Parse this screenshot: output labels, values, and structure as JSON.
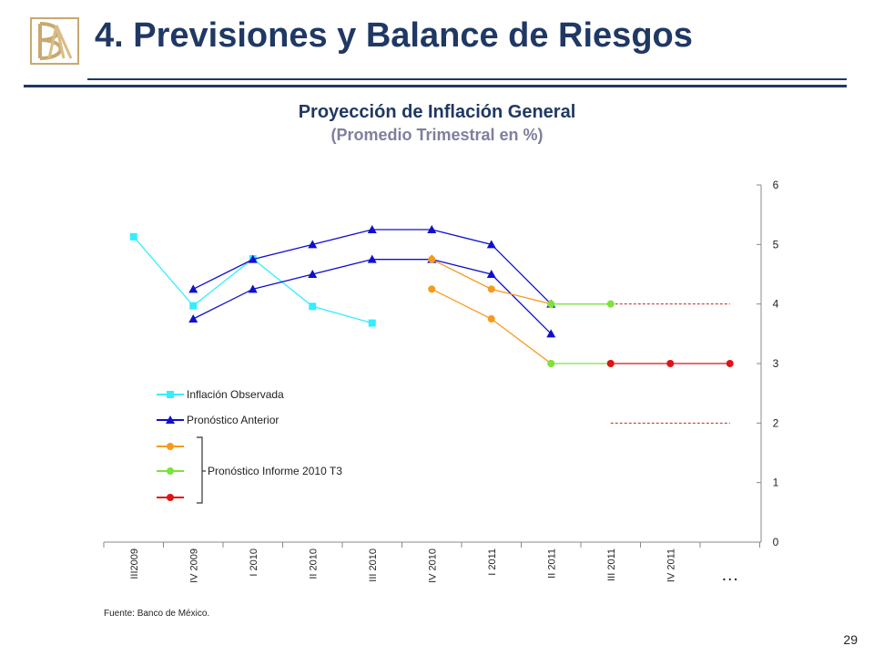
{
  "header": {
    "title": "4. Previsiones y Balance de Riesgos",
    "logo": "BM monogram"
  },
  "footer": {
    "source": "Fuente: Banco de México.",
    "page_number": "29"
  },
  "colors": {
    "title": "#1f3864",
    "observed": "#33eeff",
    "previous": "#1010cc",
    "orange": "#f59a1e",
    "green": "#7be33a",
    "red": "#e01414",
    "reference_line": "#cc2222"
  },
  "chart_data": {
    "type": "line",
    "title": "Proyección de Inflación General",
    "subtitle": "(Promedio Trimestral en %)",
    "categories": [
      "III2009",
      "IV 2009",
      "I 2010",
      "II 2010",
      "III 2010",
      "IV 2010",
      "I 2011",
      "II 2011",
      "III 2011",
      "IV 2011"
    ],
    "extra_category_label": "…",
    "y_axis": {
      "min": 0,
      "max": 6,
      "ticks": [
        "0",
        "1",
        "2",
        "3",
        "4",
        "5",
        "6"
      ],
      "position": "right"
    },
    "series": [
      {
        "name": "Inflación Observada",
        "key": "observed",
        "marker": "square",
        "points": [
          [
            0,
            5.13
          ],
          [
            1,
            3.97
          ],
          [
            2,
            4.76
          ],
          [
            3,
            3.96
          ],
          [
            4,
            3.68
          ]
        ]
      },
      {
        "name": "Pronóstico Anterior",
        "key": "previous_upper",
        "marker": "triangle",
        "points": [
          [
            1,
            4.25
          ],
          [
            2,
            4.75
          ],
          [
            3,
            5.0
          ],
          [
            4,
            5.25
          ],
          [
            5,
            5.25
          ],
          [
            6,
            5.0
          ],
          [
            7,
            4.0
          ]
        ]
      },
      {
        "key": "previous_lower",
        "marker": "triangle",
        "points": [
          [
            1,
            3.75
          ],
          [
            2,
            4.25
          ],
          [
            3,
            4.5
          ],
          [
            4,
            4.75
          ],
          [
            5,
            4.75
          ],
          [
            6,
            4.5
          ],
          [
            7,
            3.5
          ]
        ]
      },
      {
        "key": "orange_upper",
        "marker": "circle",
        "points": [
          [
            5,
            4.75
          ],
          [
            6,
            4.25
          ],
          [
            7,
            4.0
          ]
        ]
      },
      {
        "key": "orange_lower",
        "marker": "circle",
        "points": [
          [
            5,
            4.25
          ],
          [
            6,
            3.75
          ],
          [
            7,
            3.0
          ]
        ]
      },
      {
        "key": "green_upper",
        "marker": "circle",
        "points": [
          [
            7,
            4.0
          ],
          [
            8,
            4.0
          ]
        ]
      },
      {
        "key": "green_lower",
        "marker": "circle",
        "points": [
          [
            7,
            3.0
          ],
          [
            8,
            3.0
          ]
        ]
      },
      {
        "key": "red_lower",
        "marker": "circle",
        "points": [
          [
            8,
            3.0
          ],
          [
            9,
            3.0
          ],
          [
            10,
            3.0
          ]
        ]
      }
    ],
    "reference_lines": [
      {
        "y": 4.0,
        "from": 8,
        "to": 10,
        "style": "dashed"
      },
      {
        "y": 2.0,
        "from": 8,
        "to": 10,
        "style": "dashed"
      }
    ],
    "legend": {
      "placement": "left",
      "entries": [
        {
          "label": "Inflación Observada",
          "key": "observed",
          "marker": "square"
        },
        {
          "label": "Pronóstico Anterior",
          "key": "previous",
          "marker": "triangle"
        },
        {
          "label": "",
          "key": "orange",
          "marker": "circle"
        },
        {
          "label": "",
          "key": "green",
          "marker": "circle"
        },
        {
          "label": "",
          "key": "red",
          "marker": "circle"
        }
      ],
      "group_label": "Pronóstico Informe 2010 T3"
    },
    "grid": false
  }
}
